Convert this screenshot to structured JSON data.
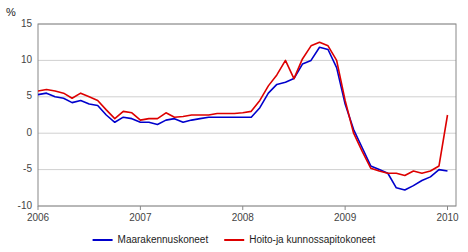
{
  "chart_data": {
    "type": "line",
    "y_label": "%",
    "x": [
      2006.0,
      2006.083,
      2006.167,
      2006.25,
      2006.333,
      2006.417,
      2006.5,
      2006.583,
      2006.667,
      2006.75,
      2006.833,
      2006.917,
      2007.0,
      2007.083,
      2007.167,
      2007.25,
      2007.333,
      2007.417,
      2007.5,
      2007.583,
      2007.667,
      2007.75,
      2007.833,
      2007.917,
      2008.0,
      2008.083,
      2008.167,
      2008.25,
      2008.333,
      2008.417,
      2008.5,
      2008.583,
      2008.667,
      2008.75,
      2008.833,
      2008.917,
      2009.0,
      2009.083,
      2009.167,
      2009.25,
      2009.333,
      2009.417,
      2009.5,
      2009.583,
      2009.667,
      2009.75,
      2009.833,
      2009.917,
      2010.0
    ],
    "series": [
      {
        "name": "Maarakennuskoneet",
        "color": "#0000cc",
        "values": [
          5.3,
          5.5,
          5.0,
          4.8,
          4.2,
          4.5,
          4.0,
          3.8,
          2.5,
          1.5,
          2.2,
          2.0,
          1.5,
          1.5,
          1.2,
          1.8,
          2.0,
          1.5,
          1.8,
          2.0,
          2.2,
          2.2,
          2.2,
          2.2,
          2.2,
          2.2,
          3.5,
          5.5,
          6.7,
          7.0,
          7.5,
          9.5,
          10.0,
          11.8,
          11.5,
          9.0,
          4.0,
          0.5,
          -2.0,
          -4.5,
          -5.0,
          -5.5,
          -7.5,
          -7.8,
          -7.2,
          -6.5,
          -6.0,
          -5.0,
          -5.2
        ]
      },
      {
        "name": "Hoito-ja kunnossapitokoneet",
        "color": "#dd0000",
        "values": [
          5.8,
          6.0,
          5.8,
          5.5,
          4.8,
          5.5,
          5.0,
          4.5,
          3.2,
          2.0,
          3.0,
          2.8,
          1.8,
          2.0,
          2.0,
          2.8,
          2.2,
          2.3,
          2.5,
          2.5,
          2.5,
          2.7,
          2.7,
          2.7,
          2.8,
          3.0,
          4.5,
          6.5,
          8.0,
          10.0,
          7.5,
          10.2,
          12.0,
          12.5,
          12.0,
          10.0,
          4.5,
          0.0,
          -2.5,
          -4.8,
          -5.2,
          -5.5,
          -5.5,
          -5.8,
          -5.2,
          -5.5,
          -5.2,
          -4.5,
          2.5
        ]
      }
    ],
    "xlim": [
      2006.0,
      2010.083
    ],
    "xticks": [
      2006,
      2007,
      2008,
      2009,
      2010
    ],
    "ylim": [
      -10,
      15
    ],
    "yticks": [
      -10,
      -5,
      0,
      5,
      10,
      15
    ],
    "grid": true,
    "legend": "bottom"
  }
}
